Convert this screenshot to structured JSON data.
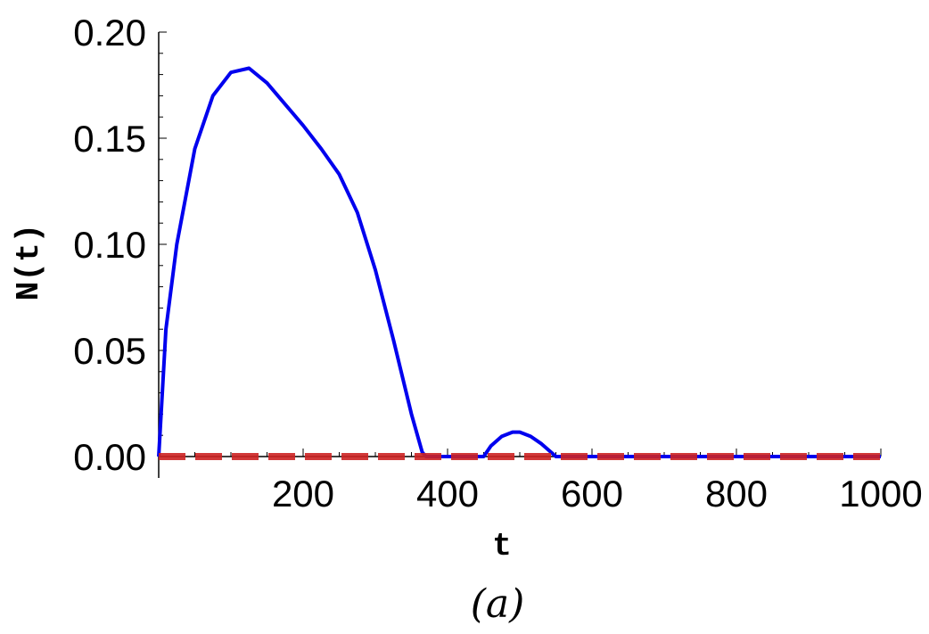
{
  "chart_data": {
    "type": "line",
    "title": "",
    "xlabel": "t",
    "ylabel": "N(t)",
    "caption": "(a)",
    "xlim": [
      0,
      1000
    ],
    "ylim": [
      0,
      0.2
    ],
    "x_ticks": [
      200,
      400,
      600,
      800,
      1000
    ],
    "x_tick_labels": [
      "200",
      "400",
      "600",
      "800",
      "1000"
    ],
    "y_ticks": [
      0,
      0.05,
      0.1,
      0.15,
      0.2
    ],
    "y_tick_labels": [
      "0.00",
      "0.05",
      "0.10",
      "0.15",
      "0.20"
    ],
    "grid": false,
    "legend": "none",
    "series": [
      {
        "style": "solid",
        "color": "#0000ee",
        "x": [
          0,
          10,
          25,
          50,
          75,
          100,
          125,
          150,
          175,
          200,
          225,
          250,
          275,
          300,
          325,
          350,
          365,
          370,
          400,
          440,
          450,
          460,
          475,
          490,
          500,
          515,
          530,
          545,
          550,
          600,
          700,
          800,
          900,
          1000
        ],
        "y": [
          0,
          0.06,
          0.1,
          0.145,
          0.17,
          0.181,
          0.183,
          0.176,
          0.166,
          0.156,
          0.145,
          0.133,
          0.115,
          0.088,
          0.055,
          0.02,
          0.002,
          0,
          0,
          0,
          0,
          0.005,
          0.0095,
          0.0115,
          0.0115,
          0.0095,
          0.006,
          0.0015,
          0,
          0,
          0,
          0,
          0,
          0
        ]
      },
      {
        "style": "dashed",
        "color": "#cc2222",
        "x": [
          0,
          1000
        ],
        "y": [
          0,
          0
        ]
      }
    ]
  }
}
